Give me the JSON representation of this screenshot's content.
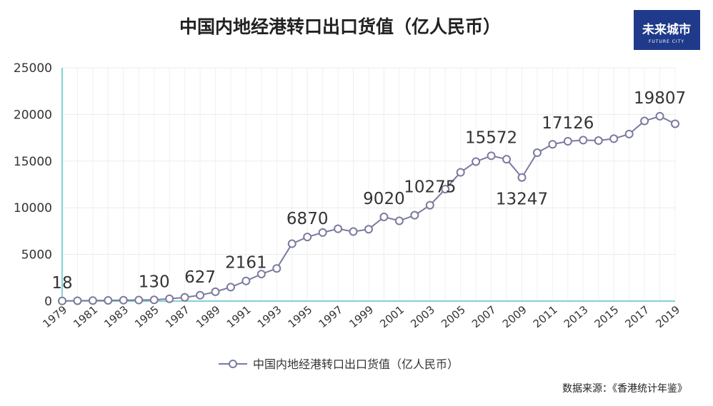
{
  "chart_data": {
    "type": "line",
    "title": "中国内地经港转口出口货值（亿人民币）",
    "xlabel": "",
    "ylabel": "",
    "ylim": [
      0,
      25000
    ],
    "yticks": [
      0,
      5000,
      10000,
      15000,
      20000,
      25000
    ],
    "x": [
      1979,
      1980,
      1981,
      1982,
      1983,
      1984,
      1985,
      1986,
      1987,
      1988,
      1989,
      1990,
      1991,
      1992,
      1993,
      1994,
      1995,
      1996,
      1997,
      1998,
      1999,
      2000,
      2001,
      2002,
      2003,
      2004,
      2005,
      2006,
      2007,
      2008,
      2009,
      2010,
      2011,
      2012,
      2013,
      2014,
      2015,
      2016,
      2017,
      2018,
      2019
    ],
    "xtick_labels": [
      "1979",
      "1981",
      "1983",
      "1985",
      "1987",
      "1989",
      "1991",
      "1993",
      "1995",
      "1997",
      "1999",
      "2001",
      "2003",
      "2005",
      "2007",
      "2009",
      "2011",
      "2013",
      "2015",
      "2017",
      "2019"
    ],
    "grid": true,
    "legend": "bottom",
    "series": [
      {
        "name": "中国内地经港转口出口货值（亿人民币）",
        "color": "#7a7a9e",
        "values": [
          18,
          40,
          60,
          80,
          100,
          110,
          130,
          250,
          400,
          627,
          1000,
          1500,
          2161,
          2900,
          3500,
          6150,
          6870,
          7350,
          7750,
          7450,
          7700,
          9020,
          8600,
          9200,
          10275,
          12000,
          13800,
          14950,
          15572,
          15200,
          13247,
          15900,
          16800,
          17126,
          17250,
          17200,
          17400,
          17900,
          19300,
          19807,
          19000
        ]
      }
    ],
    "data_labels": [
      {
        "index": 0,
        "text": "18"
      },
      {
        "index": 6,
        "text": "130"
      },
      {
        "index": 9,
        "text": "627"
      },
      {
        "index": 12,
        "text": "2161"
      },
      {
        "index": 16,
        "text": "6870"
      },
      {
        "index": 21,
        "text": "9020"
      },
      {
        "index": 24,
        "text": "10275"
      },
      {
        "index": 28,
        "text": "15572"
      },
      {
        "index": 30,
        "text": "13247"
      },
      {
        "index": 33,
        "text": "17126"
      },
      {
        "index": 39,
        "text": "19807"
      }
    ]
  },
  "source_note": "数据来源：《香港统计年鉴》",
  "logo": {
    "text": "未来城市",
    "sub": "FUTURE CITY",
    "bg": "#1f3a8a"
  },
  "axis_color": "#5bc0c8"
}
